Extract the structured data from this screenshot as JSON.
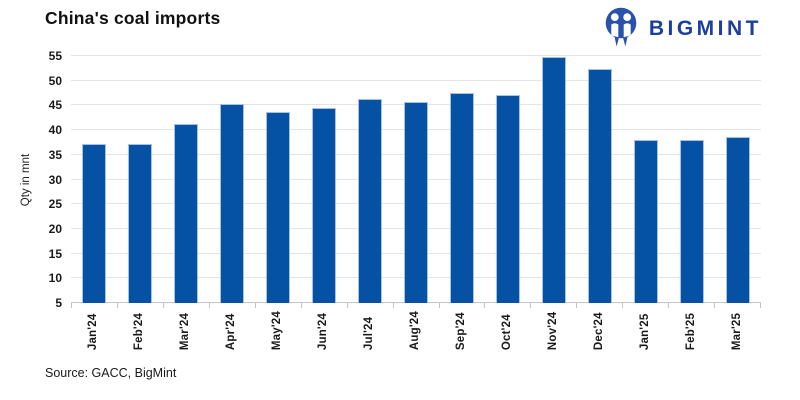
{
  "chart": {
    "title": "China's coal imports",
    "ylabel": "Qty in mnt",
    "source": "Source: GACC, BigMint"
  },
  "logo": {
    "text": "BIGMINT"
  },
  "colors": {
    "bar": "#0552a4",
    "bar_border": "#a6c1e2",
    "grid": "#e4e4e4",
    "axis": "#c4c4c4",
    "logo_blue": "#1c3f9f",
    "logo_icon_blue": "#2a52ab"
  },
  "chart_data": {
    "type": "bar",
    "title": "China's coal imports",
    "xlabel": "",
    "ylabel": "Qty in mnt",
    "categories": [
      "Jan'24",
      "Feb'24",
      "Mar'24",
      "Apr'24",
      "May'24",
      "Jun'24",
      "Jul'24",
      "Aug'24",
      "Sep'24",
      "Oct'24",
      "Nov'24",
      "Dec'24",
      "Jan'25",
      "Feb'25",
      "Mar'25"
    ],
    "values": [
      37.2,
      37.2,
      41.2,
      45.2,
      43.6,
      44.4,
      46.2,
      45.7,
      47.5,
      47.1,
      54.8,
      52.3,
      38.1,
      38.1,
      38.7
    ],
    "ylim": [
      5,
      55
    ],
    "ytick_step": 5,
    "yticks": [
      5,
      10,
      15,
      20,
      25,
      30,
      35,
      40,
      45,
      50,
      55
    ],
    "grid": true,
    "legend": false,
    "bar_color": "#0552a4"
  }
}
